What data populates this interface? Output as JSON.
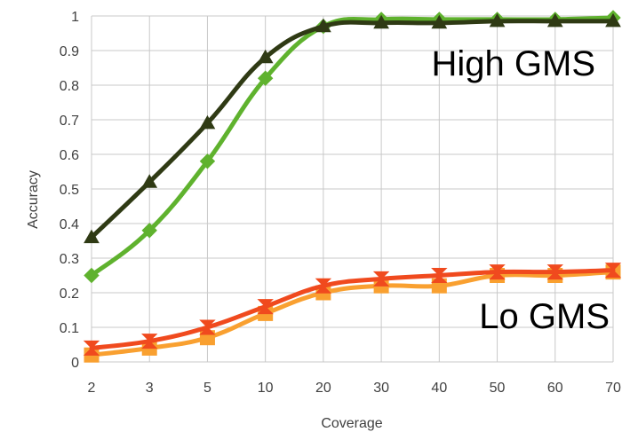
{
  "chart_data": {
    "type": "line",
    "categories": [
      "2",
      "3",
      "5",
      "10",
      "20",
      "30",
      "40",
      "50",
      "60",
      "70"
    ],
    "xlabel": "Coverage",
    "ylabel": "Accuracy",
    "ylim": [
      0,
      1
    ],
    "yticks": [
      "0",
      "0.1",
      "0.2",
      "0.3",
      "0.4",
      "0.5",
      "0.6",
      "0.7",
      "0.8",
      "0.9",
      "1"
    ],
    "grid": true,
    "series": [
      {
        "key": "dark-green",
        "marker": "triangle",
        "color": "#2f3a14",
        "values": [
          0.36,
          0.52,
          0.69,
          0.88,
          0.97,
          0.98,
          0.98,
          0.985,
          0.985,
          0.985
        ]
      },
      {
        "key": "light-green",
        "marker": "diamond",
        "color": "#5fb22e",
        "values": [
          0.25,
          0.38,
          0.58,
          0.82,
          0.97,
          0.99,
          0.99,
          0.99,
          0.99,
          0.995
        ]
      },
      {
        "key": "red-orange",
        "marker": "hourglass",
        "color": "#f04a1e",
        "values": [
          0.04,
          0.06,
          0.1,
          0.16,
          0.22,
          0.24,
          0.25,
          0.26,
          0.26,
          0.265
        ]
      },
      {
        "key": "orange",
        "marker": "square",
        "color": "#f9a030",
        "values": [
          0.02,
          0.04,
          0.07,
          0.14,
          0.2,
          0.22,
          0.22,
          0.25,
          0.25,
          0.26
        ]
      }
    ],
    "annotations": [
      {
        "text": "High GMS"
      },
      {
        "text": "Lo GMS"
      }
    ]
  }
}
